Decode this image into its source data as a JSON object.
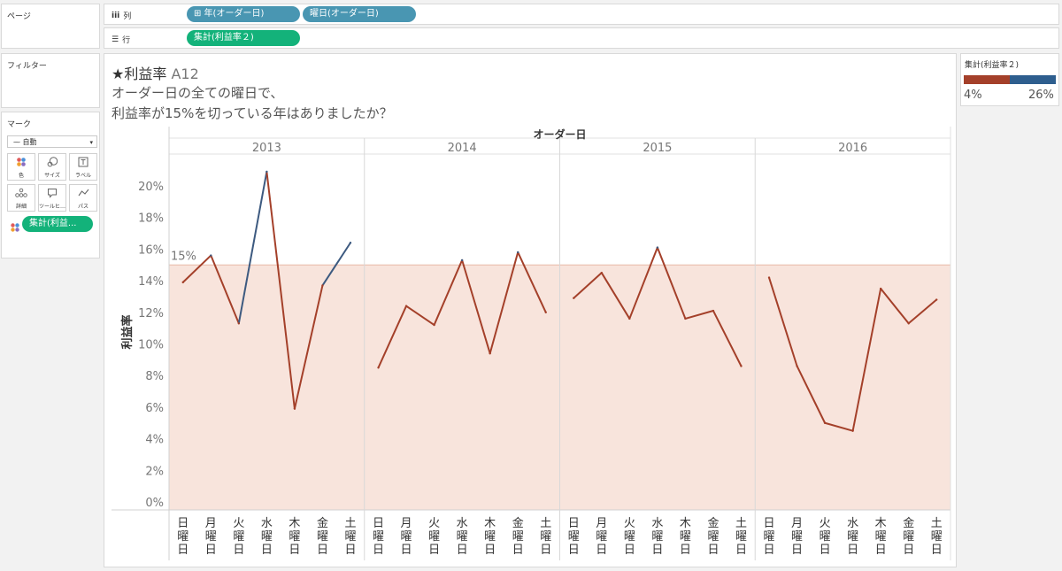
{
  "shelves": {
    "pages_title": "ページ",
    "columns_label": "列",
    "rows_label": "行",
    "columns_pills": [
      "⊞ 年(オーダー日)",
      "曜日(オーダー日)"
    ],
    "rows_pills": [
      "集計(利益率２)"
    ]
  },
  "filters_title": "フィルター",
  "marks": {
    "title": "マーク",
    "type": "自動",
    "buttons": [
      {
        "icon": "color-icon",
        "label": "色"
      },
      {
        "icon": "size-icon",
        "label": "サイズ"
      },
      {
        "icon": "label-icon",
        "label": "ラベル"
      },
      {
        "icon": "detail-icon",
        "label": "詳細"
      },
      {
        "icon": "tooltip-icon",
        "label": "ツールヒ…"
      },
      {
        "icon": "path-icon",
        "label": "パス"
      }
    ],
    "color_pill": "集計(利益..."
  },
  "viz": {
    "title_main": "★利益率",
    "title_sub": " A12",
    "question_line1": "オーダー日の全ての曜日で、",
    "question_line2": "利益率が15%を切っている年はありましたか？"
  },
  "legend": {
    "title": "集計(利益率２)",
    "min_label": "4%",
    "max_label": "26%",
    "low_color": "#a4402a",
    "high_color": "#2e5e8e"
  },
  "chart_data": {
    "type": "line",
    "column_header": "オーダー日",
    "years": [
      "2013",
      "2014",
      "2015",
      "2016"
    ],
    "categories": [
      "日曜日",
      "月曜日",
      "火曜日",
      "水曜日",
      "木曜日",
      "金曜日",
      "土曜日"
    ],
    "series": [
      {
        "name": "2013",
        "values": [
          13.9,
          15.6,
          11.3,
          20.9,
          5.9,
          13.7,
          16.4
        ]
      },
      {
        "name": "2014",
        "values": [
          8.5,
          12.4,
          11.2,
          15.3,
          9.4,
          15.8,
          12.0
        ]
      },
      {
        "name": "2015",
        "values": [
          12.9,
          14.5,
          11.6,
          16.1,
          11.6,
          12.1,
          8.6
        ]
      },
      {
        "name": "2016",
        "values": [
          14.2,
          8.6,
          5.0,
          4.5,
          13.5,
          11.3,
          12.8
        ]
      }
    ],
    "ylabel": "利益率",
    "y_ticks": [
      0,
      2,
      4,
      6,
      8,
      10,
      12,
      14,
      16,
      18,
      20
    ],
    "y_tick_labels": [
      "0%",
      "2%",
      "4%",
      "6%",
      "8%",
      "10%",
      "12%",
      "14%",
      "16%",
      "18%",
      "20%"
    ],
    "ylim": [
      0,
      21.7
    ],
    "reference_line": {
      "value": 15,
      "label": "15%",
      "fill_color": "#f8e4dc",
      "line_color": "#e8b9a8"
    },
    "threshold_value": 15,
    "color_below_threshold": "#a4402a",
    "color_above_threshold": "#3d5a80"
  }
}
